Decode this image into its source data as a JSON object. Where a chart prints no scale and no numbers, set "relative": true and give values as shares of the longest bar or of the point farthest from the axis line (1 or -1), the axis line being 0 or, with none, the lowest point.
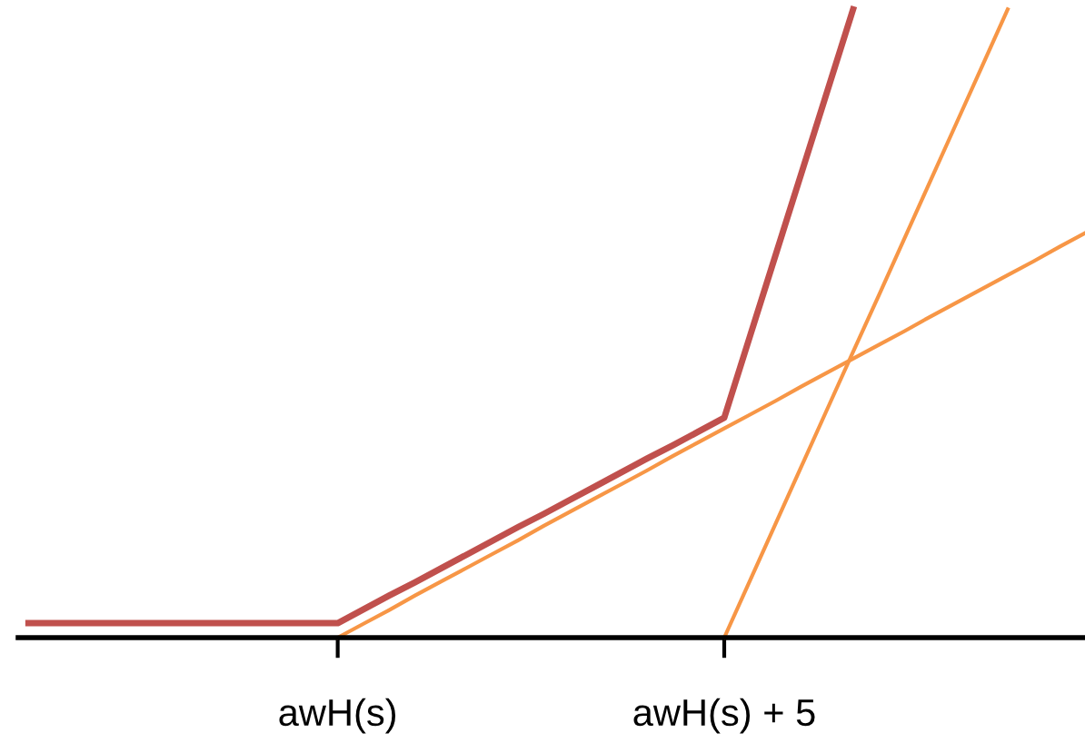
{
  "chart_data": {
    "type": "line",
    "relative": true,
    "categories": [
      null,
      null,
      null,
      null,
      null,
      null,
      null,
      null,
      null,
      null,
      null,
      null,
      "awH(s)",
      null,
      null,
      null,
      null,
      null,
      null,
      null,
      null,
      null,
      null,
      null,
      null,
      null,
      null,
      "awH(s) + 5",
      null,
      null,
      null,
      null,
      null,
      null,
      null,
      null,
      null,
      null,
      null,
      null,
      null,
      null
    ],
    "series": [
      {
        "color": "#c0504d",
        "values": [
          0.023,
          0.023,
          0.023,
          0.023,
          0.023,
          0.023,
          0.023,
          0.023,
          0.023,
          0.023,
          0.023,
          0.023,
          0.023,
          0.045,
          0.067,
          0.088,
          0.11,
          0.132,
          0.154,
          0.176,
          0.197,
          0.219,
          0.241,
          0.263,
          0.285,
          0.306,
          0.328,
          0.35,
          0.48,
          0.61,
          0.74,
          0.87,
          1.0,
          null,
          null,
          null,
          null,
          null,
          null,
          null,
          null,
          null
        ]
      },
      {
        "color": "#f79646",
        "values": [
          null,
          null,
          null,
          null,
          null,
          null,
          null,
          null,
          null,
          null,
          null,
          null,
          0,
          0.022,
          0.044,
          0.067,
          0.089,
          0.111,
          0.133,
          0.155,
          0.178,
          0.2,
          0.222,
          0.244,
          0.266,
          0.289,
          0.311,
          0.333,
          0.355,
          0.377,
          0.4,
          0.422,
          0.444,
          0.466,
          0.488,
          0.511,
          0.533,
          0.555,
          0.577,
          0.599,
          0.622,
          0.644
        ]
      },
      {
        "color": "#f79646",
        "values": [
          null,
          null,
          null,
          null,
          null,
          null,
          null,
          null,
          null,
          null,
          null,
          null,
          null,
          null,
          null,
          null,
          null,
          null,
          null,
          null,
          null,
          null,
          null,
          null,
          null,
          null,
          null,
          0,
          0.091,
          0.182,
          0.273,
          0.364,
          0.455,
          0.545,
          0.636,
          0.727,
          0.818,
          0.909,
          1.0,
          null,
          null,
          null
        ]
      }
    ],
    "grid": false,
    "legend": false,
    "marker": "none",
    "line_style": "solid"
  }
}
